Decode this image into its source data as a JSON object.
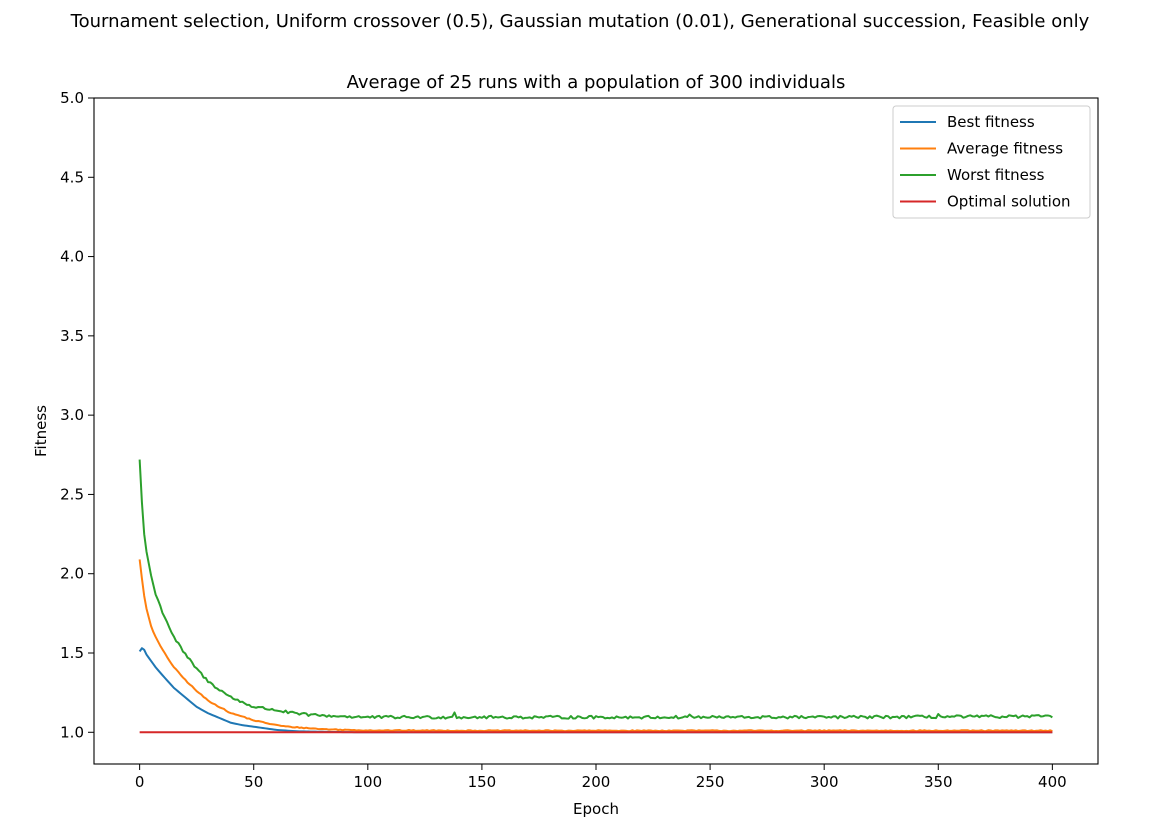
{
  "suptitle": "Tournament selection, Uniform crossover (0.5), Gaussian mutation (0.01), Generational succession, Feasible only",
  "chart_data": {
    "type": "line",
    "title": "Average of 25 runs with a population of 300 individuals",
    "xlabel": "Epoch",
    "ylabel": "Fitness",
    "xlim": [
      -20,
      420
    ],
    "ylim": [
      0.8,
      5.0
    ],
    "xticks": [
      0,
      50,
      100,
      150,
      200,
      250,
      300,
      350,
      400
    ],
    "xtick_labels": [
      "0",
      "50",
      "100",
      "150",
      "200",
      "250",
      "300",
      "350",
      "400"
    ],
    "yticks": [
      1.0,
      1.5,
      2.0,
      2.5,
      3.0,
      3.5,
      4.0,
      4.5,
      5.0
    ],
    "ytick_labels": [
      "1.0",
      "1.5",
      "2.0",
      "2.5",
      "3.0",
      "3.5",
      "4.0",
      "4.5",
      "5.0"
    ],
    "grid": false,
    "legend_position": "top-right",
    "x_range": [
      0,
      400
    ],
    "series": [
      {
        "name": "Best fitness",
        "color": "#1f77b4",
        "key_points": [
          [
            0,
            1.51
          ],
          [
            1,
            1.53
          ],
          [
            2,
            1.52
          ],
          [
            3,
            1.49
          ],
          [
            5,
            1.45
          ],
          [
            7,
            1.41
          ],
          [
            10,
            1.36
          ],
          [
            15,
            1.28
          ],
          [
            20,
            1.22
          ],
          [
            25,
            1.16
          ],
          [
            30,
            1.12
          ],
          [
            35,
            1.09
          ],
          [
            40,
            1.06
          ],
          [
            45,
            1.045
          ],
          [
            50,
            1.035
          ],
          [
            55,
            1.025
          ],
          [
            60,
            1.015
          ],
          [
            65,
            1.01
          ],
          [
            70,
            1.006
          ],
          [
            80,
            1.003
          ],
          [
            90,
            1.001
          ],
          [
            100,
            1.0
          ],
          [
            400,
            1.0
          ]
        ]
      },
      {
        "name": "Average fitness",
        "color": "#ff7f0e",
        "key_points": [
          [
            0,
            2.09
          ],
          [
            1,
            1.97
          ],
          [
            2,
            1.86
          ],
          [
            3,
            1.78
          ],
          [
            5,
            1.67
          ],
          [
            7,
            1.6
          ],
          [
            10,
            1.52
          ],
          [
            15,
            1.41
          ],
          [
            20,
            1.33
          ],
          [
            25,
            1.26
          ],
          [
            30,
            1.2
          ],
          [
            35,
            1.16
          ],
          [
            40,
            1.12
          ],
          [
            45,
            1.1
          ],
          [
            50,
            1.075
          ],
          [
            55,
            1.06
          ],
          [
            60,
            1.045
          ],
          [
            65,
            1.035
          ],
          [
            70,
            1.03
          ],
          [
            80,
            1.02
          ],
          [
            90,
            1.015
          ],
          [
            100,
            1.012
          ],
          [
            150,
            1.01
          ],
          [
            200,
            1.01
          ],
          [
            300,
            1.01
          ],
          [
            400,
            1.01
          ]
        ],
        "noise": 0.003
      },
      {
        "name": "Worst fitness",
        "color": "#2ca02c",
        "key_points": [
          [
            0,
            2.72
          ],
          [
            1,
            2.45
          ],
          [
            2,
            2.25
          ],
          [
            3,
            2.14
          ],
          [
            5,
            1.99
          ],
          [
            7,
            1.87
          ],
          [
            10,
            1.76
          ],
          [
            15,
            1.6
          ],
          [
            20,
            1.49
          ],
          [
            25,
            1.4
          ],
          [
            30,
            1.32
          ],
          [
            35,
            1.27
          ],
          [
            40,
            1.22
          ],
          [
            45,
            1.19
          ],
          [
            50,
            1.16
          ],
          [
            55,
            1.15
          ],
          [
            60,
            1.14
          ],
          [
            65,
            1.125
          ],
          [
            70,
            1.115
          ],
          [
            80,
            1.105
          ],
          [
            90,
            1.1
          ],
          [
            100,
            1.095
          ],
          [
            150,
            1.095
          ],
          [
            200,
            1.095
          ],
          [
            300,
            1.095
          ],
          [
            400,
            1.1
          ]
        ],
        "noise": 0.009,
        "spikes": [
          [
            138,
            1.125
          ],
          [
            241,
            1.112
          ],
          [
            350,
            1.115
          ]
        ]
      },
      {
        "name": "Optimal solution",
        "color": "#d62728",
        "key_points": [
          [
            0,
            1.0
          ],
          [
            400,
            1.0
          ]
        ]
      }
    ]
  }
}
